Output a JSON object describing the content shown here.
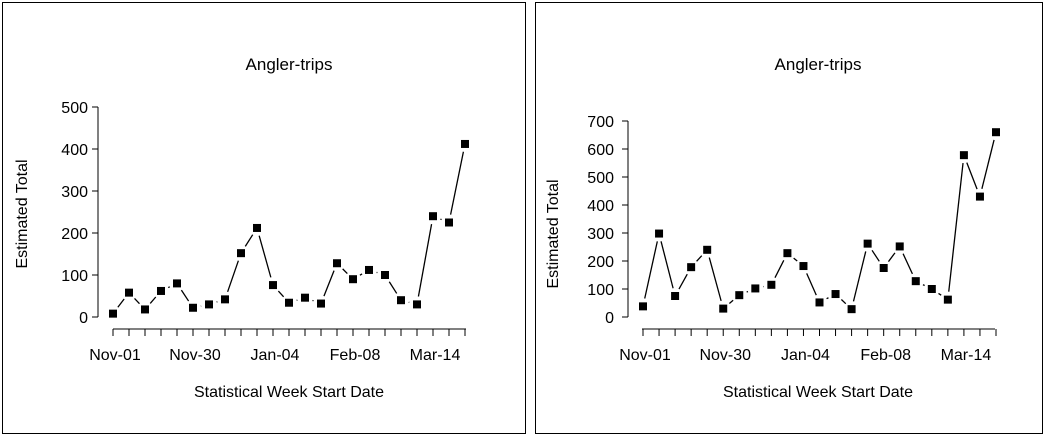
{
  "chart_data": [
    {
      "type": "line",
      "title": "Angler-trips",
      "xlabel": "Statistical Week Start Date",
      "ylabel": "Estimated Total",
      "ylim": [
        0,
        500
      ],
      "yticks": [
        0,
        100,
        200,
        300,
        400,
        500
      ],
      "xtick_labels": [
        "Nov-01",
        "Nov-30",
        "Jan-04",
        "Feb-08",
        "Mar-14"
      ],
      "marker": "square",
      "grid": false,
      "series": [
        {
          "values": [
            8,
            58,
            18,
            62,
            80,
            22,
            30,
            42,
            152,
            212,
            76,
            34,
            46,
            32,
            128,
            90,
            112,
            100,
            40,
            30,
            240,
            225,
            412
          ]
        }
      ]
    },
    {
      "type": "line",
      "title": "Angler-trips",
      "xlabel": "Statistical Week Start Date",
      "ylabel": "Estimated Total",
      "ylim": [
        0,
        700
      ],
      "yticks": [
        0,
        100,
        200,
        300,
        400,
        500,
        600,
        700
      ],
      "xtick_labels": [
        "Nov-01",
        "Nov-30",
        "Jan-04",
        "Feb-08",
        "Mar-14"
      ],
      "marker": "square",
      "grid": false,
      "series": [
        {
          "values": [
            38,
            298,
            75,
            178,
            240,
            30,
            78,
            102,
            115,
            228,
            182,
            52,
            82,
            28,
            262,
            175,
            252,
            128,
            100,
            62,
            578,
            430,
            660
          ]
        }
      ]
    }
  ]
}
